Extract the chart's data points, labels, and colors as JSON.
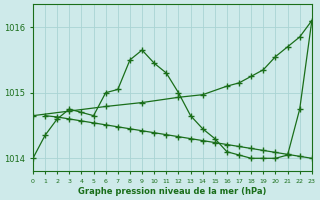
{
  "title": "Graphe pression niveau de la mer (hPa)",
  "bg_color": "#ceeaea",
  "grid_color": "#aad4d4",
  "line_color": "#1a6e1a",
  "xlim": [
    0,
    23
  ],
  "ylim": [
    1013.8,
    1016.35
  ],
  "yticks": [
    1014,
    1015,
    1016
  ],
  "xticks": [
    0,
    1,
    2,
    3,
    4,
    5,
    6,
    7,
    8,
    9,
    10,
    11,
    12,
    13,
    14,
    15,
    16,
    17,
    18,
    19,
    20,
    21,
    22,
    23
  ],
  "series1_x": [
    0,
    1,
    2,
    3,
    4,
    5,
    6,
    7,
    8,
    9,
    10,
    11,
    12,
    13,
    14,
    15,
    16,
    17,
    18,
    19,
    20,
    21,
    22,
    23
  ],
  "series1_y": [
    1014.0,
    1014.35,
    1014.6,
    1014.75,
    1014.7,
    1014.65,
    1015.0,
    1015.05,
    1015.5,
    1015.65,
    1015.45,
    1015.3,
    1015.0,
    1014.65,
    1014.45,
    1014.3,
    1014.1,
    1014.05,
    1014.0,
    1014.0,
    1014.0,
    1014.05,
    1014.75,
    1016.1
  ],
  "series2_x": [
    0,
    3,
    6,
    9,
    12,
    14,
    16,
    17,
    18,
    19,
    20,
    21,
    22,
    23
  ],
  "series2_y": [
    1014.65,
    1014.72,
    1014.79,
    1014.85,
    1014.93,
    1014.97,
    1015.1,
    1015.15,
    1015.25,
    1015.35,
    1015.55,
    1015.7,
    1015.85,
    1016.1
  ],
  "series3_x": [
    1,
    2,
    3,
    4,
    5,
    6,
    7,
    8,
    9,
    10,
    11,
    12,
    13,
    14,
    15,
    16,
    17,
    18,
    19,
    20,
    21,
    22,
    23
  ],
  "series3_y": [
    1014.65,
    1014.63,
    1014.6,
    1014.57,
    1014.54,
    1014.51,
    1014.48,
    1014.45,
    1014.42,
    1014.39,
    1014.36,
    1014.33,
    1014.3,
    1014.27,
    1014.24,
    1014.21,
    1014.18,
    1014.15,
    1014.12,
    1014.09,
    1014.06,
    1014.03,
    1014.0
  ]
}
